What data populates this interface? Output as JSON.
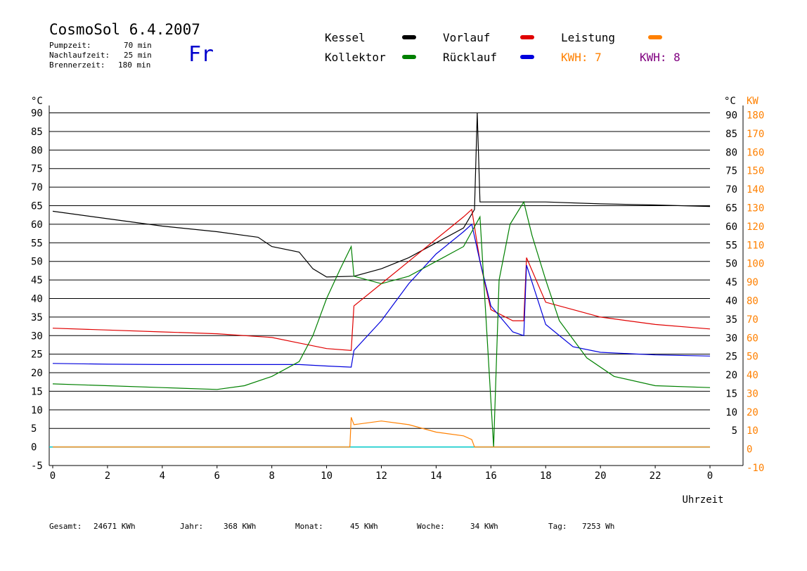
{
  "header": {
    "title": "CosmoSol 6.4.2007",
    "day": "Fr",
    "params": [
      {
        "label": "Pumpzeit:",
        "value": "70 min"
      },
      {
        "label": "Nachlaufzeit:",
        "value": "25 min"
      },
      {
        "label": "Brennerzeit:",
        "value": "180 min"
      }
    ]
  },
  "legend": {
    "kessel": {
      "label": "Kessel",
      "color": "#000000"
    },
    "kollektor": {
      "label": "Kollektor",
      "color": "#008000"
    },
    "vorlauf": {
      "label": "Vorlauf",
      "color": "#e00000"
    },
    "ruecklauf": {
      "label": "Rücklauf",
      "color": "#0000dd"
    },
    "leistung": {
      "label": "Leistung",
      "color": "#ff8000"
    },
    "kwh1": {
      "label": "KWH: 7",
      "color": "#ff8000"
    },
    "kwh2": {
      "label": "KWH: 8",
      "color": "#800080"
    }
  },
  "footer": {
    "gesamt": {
      "label": "Gesamt:",
      "value": "24671 KWh"
    },
    "jahr": {
      "label": "Jahr:",
      "value": "368 KWh"
    },
    "monat": {
      "label": "Monat:",
      "value": "45 KWh"
    },
    "woche": {
      "label": "Woche:",
      "value": "34 KWh"
    },
    "tag": {
      "label": "Tag:",
      "value": "7253 Wh"
    }
  },
  "chart_data": {
    "type": "line",
    "xlabel": "Uhrzeit",
    "x_ticks": [
      "0",
      "2",
      "4",
      "6",
      "8",
      "10",
      "12",
      "14",
      "16",
      "18",
      "20",
      "22",
      "0"
    ],
    "xlim": [
      0,
      24
    ],
    "y_left": {
      "unit": "°C",
      "ticks": [
        90,
        85,
        80,
        75,
        70,
        65,
        60,
        55,
        50,
        45,
        40,
        35,
        30,
        25,
        20,
        15,
        10,
        5,
        0,
        -5
      ],
      "range": [
        -5,
        92
      ]
    },
    "y_right_temp": {
      "unit": "°C",
      "ticks": [
        90,
        85,
        80,
        75,
        70,
        65,
        60,
        55,
        50,
        45,
        40,
        35,
        30,
        25,
        20,
        15,
        10,
        5
      ]
    },
    "y_right_power": {
      "unit": "KW",
      "ticks": [
        180,
        170,
        160,
        150,
        140,
        130,
        120,
        110,
        100,
        90,
        80,
        70,
        60,
        50,
        40,
        30,
        20,
        10,
        0,
        -10
      ]
    },
    "series": [
      {
        "name": "Kessel",
        "color": "#000000",
        "x": [
          0,
          2,
          4,
          6,
          7.5,
          8,
          9,
          9.5,
          10,
          11,
          12,
          13,
          14,
          15,
          15.4,
          15.5,
          15.6,
          16,
          17,
          18,
          20,
          22,
          24
        ],
        "y": [
          63.5,
          61.5,
          59.5,
          58,
          56.5,
          54,
          52.5,
          48,
          45.8,
          46,
          48,
          51,
          55,
          59,
          64,
          90,
          66,
          66,
          66,
          66,
          65.5,
          65.2,
          64.8
        ]
      },
      {
        "name": "Vorlauf",
        "color": "#e00000",
        "x": [
          0,
          2,
          4,
          6,
          8,
          9,
          10,
          10.9,
          11,
          12,
          13,
          14,
          15,
          15.3,
          15.6,
          16,
          16.8,
          17.2,
          17.3,
          18,
          19,
          20,
          22,
          24
        ],
        "y": [
          32,
          31.5,
          31,
          30.5,
          29.5,
          28,
          26.5,
          26,
          38,
          44,
          50,
          56,
          62,
          64,
          50,
          37,
          34,
          34,
          51,
          39,
          37,
          35,
          33,
          31.8
        ]
      },
      {
        "name": "Rücklauf",
        "color": "#0000dd",
        "x": [
          0,
          2,
          4,
          6,
          8,
          9,
          10,
          10.9,
          11,
          12,
          13,
          14,
          15,
          15.3,
          15.6,
          16,
          16.8,
          17.2,
          17.3,
          18,
          19,
          20,
          22,
          24
        ],
        "y": [
          22.5,
          22.3,
          22.2,
          22.2,
          22.2,
          22.2,
          21.8,
          21.5,
          26,
          34,
          44,
          52,
          58,
          60,
          50,
          38,
          31,
          30,
          49,
          33,
          27,
          25.5,
          24.8,
          24.5
        ]
      },
      {
        "name": "Kollektor",
        "color": "#008000",
        "x": [
          0,
          2,
          4,
          6,
          7,
          8,
          9,
          9.5,
          10,
          10.5,
          10.9,
          11,
          12,
          13,
          14,
          15,
          15.3,
          15.6,
          16.1,
          16.3,
          16.7,
          17.2,
          17.5,
          18,
          18.5,
          19.5,
          20.5,
          22,
          24
        ],
        "y": [
          17,
          16.5,
          16,
          15.5,
          16.5,
          19,
          23,
          30,
          40,
          48,
          54,
          46,
          44,
          46,
          50,
          54,
          58,
          62,
          0,
          45,
          60,
          66,
          57,
          45,
          34,
          24,
          19,
          16.5,
          16
        ]
      },
      {
        "name": "Leistung",
        "color": "#ff8000",
        "x": [
          0,
          10.85,
          10.9,
          11,
          12,
          13,
          14,
          15,
          15.3,
          15.4,
          24
        ],
        "y": [
          0,
          0,
          8,
          6,
          7,
          6,
          4,
          3,
          2,
          0,
          0
        ]
      }
    ]
  }
}
